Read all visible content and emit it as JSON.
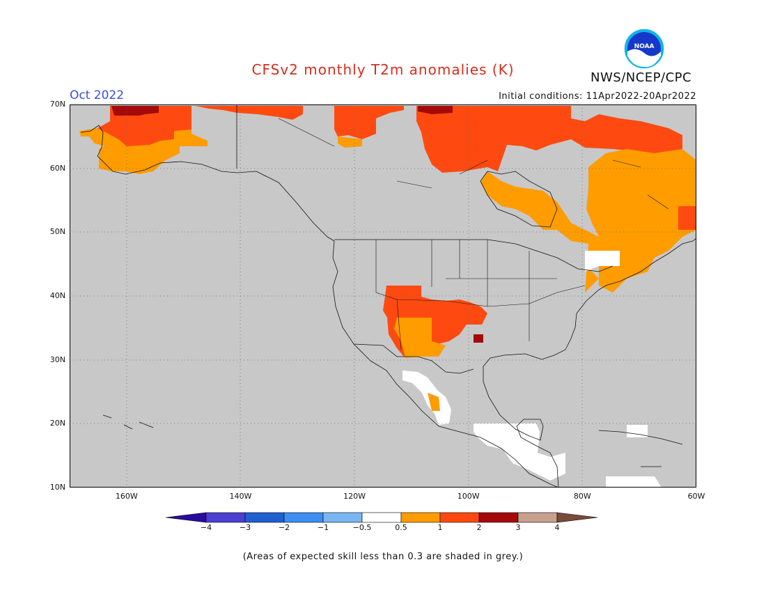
{
  "header": {
    "title": "CFSv2 monthly T2m anomalies (K)",
    "month": "Oct 2022",
    "initial_conditions": "Initial conditions: 11Apr2022-20Apr2022",
    "agency": "NWS/NCEP/CPC",
    "logo_text": "NOAA",
    "logo_icon": "noaa-logo-icon"
  },
  "map": {
    "projection": "lat-lon",
    "lon_range": [
      -170,
      -60
    ],
    "lat_range": [
      10,
      70
    ],
    "background_color": "#c8c8c8",
    "lat_ticks": [
      {
        "value": 70,
        "label": "70N"
      },
      {
        "value": 60,
        "label": "60N"
      },
      {
        "value": 50,
        "label": "50N"
      },
      {
        "value": 40,
        "label": "40N"
      },
      {
        "value": 30,
        "label": "30N"
      },
      {
        "value": 20,
        "label": "20N"
      },
      {
        "value": 10,
        "label": "10N"
      }
    ],
    "lon_ticks": [
      {
        "value": -160,
        "label": "160W"
      },
      {
        "value": -140,
        "label": "140W"
      },
      {
        "value": -120,
        "label": "120W"
      },
      {
        "value": -100,
        "label": "100W"
      },
      {
        "value": -80,
        "label": "80W"
      },
      {
        "value": -60,
        "label": "60W"
      }
    ],
    "grid": "dotted"
  },
  "colorbar": {
    "bins": [
      {
        "color": "#2a0aa0"
      },
      {
        "color": "#4b3fd0"
      },
      {
        "color": "#1f5fd0"
      },
      {
        "color": "#3c8ef0"
      },
      {
        "color": "#78b6f2"
      },
      {
        "color": "#ffffff"
      },
      {
        "color": "#ff9c00"
      },
      {
        "color": "#fe4a10"
      },
      {
        "color": "#a50a0a"
      },
      {
        "color": "#c8a090"
      },
      {
        "color": "#7a4a3a"
      }
    ],
    "tick_labels": [
      "−4",
      "−3",
      "−2",
      "−1",
      "−0.5",
      "0.5",
      "1",
      "2",
      "3",
      "4"
    ]
  },
  "footnote": "(Areas of expected skill less than 0.3 are shaded in grey.)"
}
